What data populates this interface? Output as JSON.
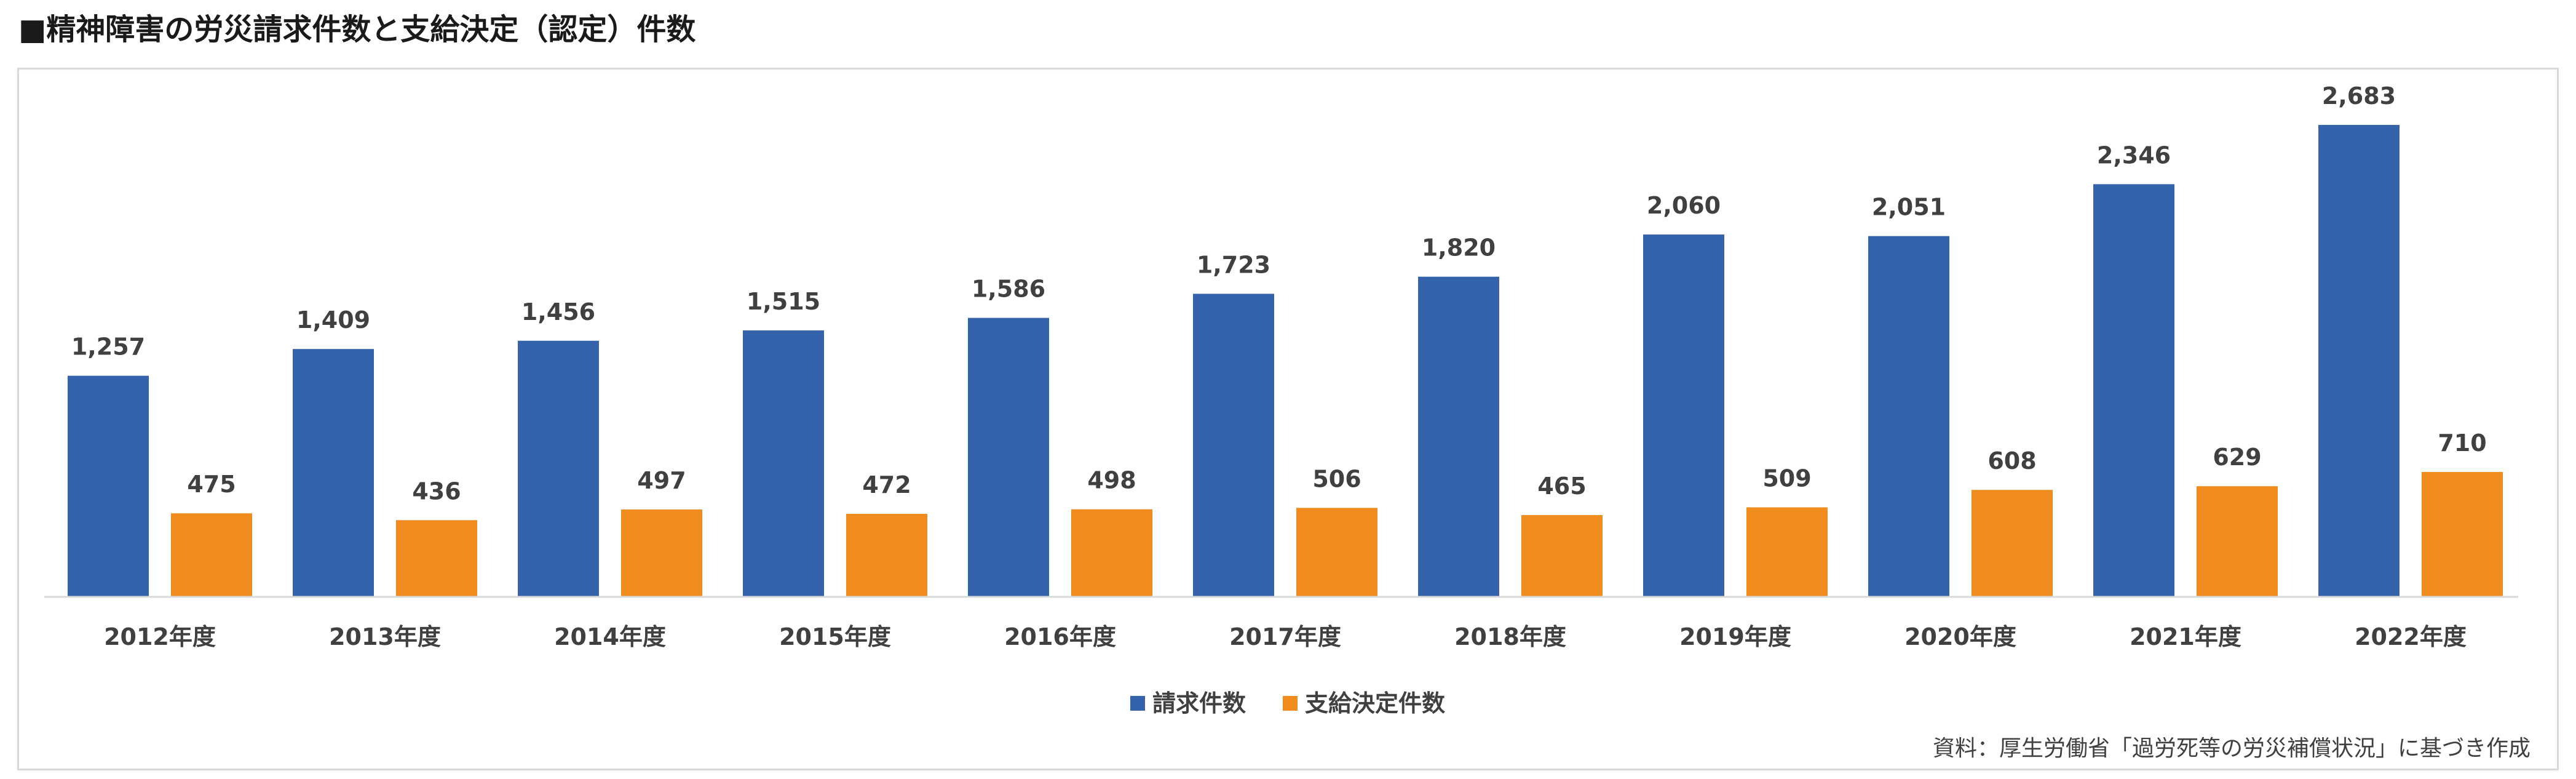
{
  "title": "■精神障害の労災請求件数と支給決定（認定）件数",
  "source": "資料：厚生労働省「過労死等の労災補償状況」に基づき作成",
  "chart_data": {
    "type": "bar",
    "title": "■精神障害の労災請求件数と支給決定（認定）件数",
    "categories": [
      "2012年度",
      "2013年度",
      "2014年度",
      "2015年度",
      "2016年度",
      "2017年度",
      "2018年度",
      "2019年度",
      "2020年度",
      "2021年度",
      "2022年度"
    ],
    "series": [
      {
        "name": "請求件数",
        "color": "#3462ab",
        "values": [
          1257,
          1409,
          1456,
          1515,
          1586,
          1723,
          1820,
          2060,
          2051,
          2346,
          2683
        ],
        "labels": [
          "1,257",
          "1,409",
          "1,456",
          "1,515",
          "1,586",
          "1,723",
          "1,820",
          "2,060",
          "2,051",
          "2,346",
          "2,683"
        ]
      },
      {
        "name": "支給決定件数",
        "color": "#f08c1e",
        "values": [
          475,
          436,
          497,
          472,
          498,
          506,
          465,
          509,
          608,
          629,
          710
        ],
        "labels": [
          "475",
          "436",
          "497",
          "472",
          "498",
          "506",
          "465",
          "509",
          "608",
          "629",
          "710"
        ]
      }
    ],
    "ylim": [
      0,
      2683
    ],
    "grid": false,
    "legend": "bottom-center",
    "data_labels": true
  }
}
